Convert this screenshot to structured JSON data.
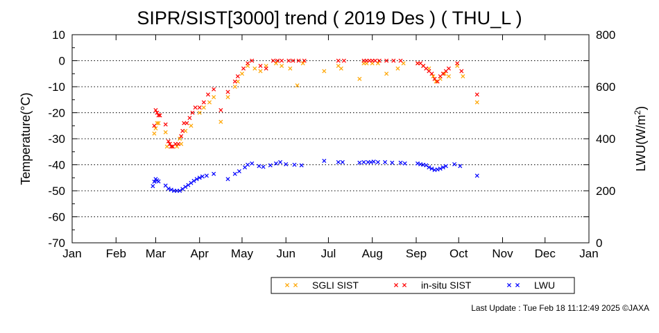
{
  "chart_data": {
    "type": "scatter",
    "title": "SIPR/SIST[3000] trend ( 2019 Des ) ( THU_L )",
    "ylabel": "Temperature(°C)",
    "y2label_main": "LWU(W/m",
    "y2label_sup": "2",
    "y2label_end": ")",
    "ylim": [
      -70,
      10
    ],
    "y2lim": [
      0,
      800
    ],
    "yticks": [
      "10",
      "0",
      "-10",
      "-20",
      "-30",
      "-40",
      "-50",
      "-60",
      "-70"
    ],
    "y2ticks": [
      "800",
      "600",
      "400",
      "200",
      "0"
    ],
    "xticks": [
      "Jan",
      "Feb",
      "Mar",
      "Apr",
      "May",
      "Jun",
      "Jul",
      "Aug",
      "Sep",
      "Oct",
      "Nov",
      "Dec",
      "Jan"
    ],
    "grid": "dotted horizontal at every 10 °C",
    "legend_position": "bottom-right",
    "colors": {
      "sgli": "#ffa500",
      "insitu": "#ff0000",
      "lwu": "#0000ff"
    },
    "series": [
      {
        "name": "SGLI SIST",
        "axis": "left",
        "x": [
          "2019-02-28",
          "2019-03-01",
          "2019-03-02",
          "2019-03-03",
          "2019-03-08",
          "2019-03-09",
          "2019-03-11",
          "2019-03-13",
          "2019-03-16",
          "2019-03-18",
          "2019-03-19",
          "2019-03-22",
          "2019-03-26",
          "2019-04-01",
          "2019-04-04",
          "2019-04-08",
          "2019-04-11",
          "2019-04-16",
          "2019-04-21",
          "2019-04-26",
          "2019-04-28",
          "2019-05-01",
          "2019-05-05",
          "2019-05-10",
          "2019-05-14",
          "2019-05-18",
          "2019-05-25",
          "2019-05-29",
          "2019-06-04",
          "2019-06-09",
          "2019-06-13",
          "2019-06-28",
          "2019-07-08",
          "2019-07-10",
          "2019-07-23",
          "2019-07-26",
          "2019-07-28",
          "2019-08-01",
          "2019-08-05",
          "2019-08-11",
          "2019-08-19",
          "2019-08-23",
          "2019-09-02",
          "2019-09-06",
          "2019-09-10",
          "2019-09-13",
          "2019-09-15",
          "2019-09-18",
          "2019-09-21",
          "2019-09-24",
          "2019-09-30",
          "2019-10-04",
          "2019-10-14"
        ],
        "y": [
          -28,
          -26,
          -24,
          -24,
          -27.5,
          -33,
          -32,
          -33,
          -33,
          -30,
          -32,
          -27,
          -25,
          -20,
          -18,
          -16,
          -14,
          -23.5,
          -14,
          -10,
          -8,
          -5,
          -2,
          -3,
          -4,
          -2,
          -1,
          -2,
          -3,
          -9.5,
          -1,
          -4,
          -2,
          -3,
          -7,
          -1,
          -1,
          -1,
          -1,
          -5,
          -3,
          -1,
          -1,
          -2,
          -3,
          -6,
          -8,
          -7,
          -5,
          -6,
          -2,
          -6,
          -16
        ]
      },
      {
        "name": "in-situ SIST",
        "axis": "left",
        "x": [
          "2019-02-28",
          "2019-03-01",
          "2019-03-02",
          "2019-03-03",
          "2019-03-04",
          "2019-03-08",
          "2019-03-10",
          "2019-03-11",
          "2019-03-12",
          "2019-03-13",
          "2019-03-15",
          "2019-03-17",
          "2019-03-19",
          "2019-03-20",
          "2019-03-21",
          "2019-03-23",
          "2019-03-25",
          "2019-03-27",
          "2019-03-29",
          "2019-04-01",
          "2019-04-04",
          "2019-04-07",
          "2019-04-11",
          "2019-04-16",
          "2019-04-21",
          "2019-04-26",
          "2019-04-28",
          "2019-05-02",
          "2019-05-05",
          "2019-05-08",
          "2019-05-14",
          "2019-05-18",
          "2019-05-23",
          "2019-05-26",
          "2019-05-29",
          "2019-06-03",
          "2019-06-06",
          "2019-06-10",
          "2019-06-14",
          "2019-07-08",
          "2019-07-12",
          "2019-07-26",
          "2019-07-28",
          "2019-07-30",
          "2019-08-01",
          "2019-08-03",
          "2019-08-06",
          "2019-08-11",
          "2019-08-16",
          "2019-08-21",
          "2019-09-02",
          "2019-09-04",
          "2019-09-06",
          "2019-09-08",
          "2019-09-10",
          "2019-09-12",
          "2019-09-14",
          "2019-09-16",
          "2019-09-18",
          "2019-09-20",
          "2019-09-22",
          "2019-09-24",
          "2019-09-30",
          "2019-10-03",
          "2019-10-14"
        ],
        "y": [
          -25,
          -19,
          -20,
          -21,
          -21,
          -24.5,
          -31,
          -32,
          -33,
          -33,
          -32,
          -32,
          -29,
          -27,
          -24,
          -24,
          -22,
          -20,
          -18,
          -18,
          -16,
          -13,
          -11,
          -19,
          -12,
          -8,
          -6,
          -3,
          -1,
          0,
          -2,
          -3,
          0,
          0,
          0,
          0,
          0,
          0,
          0,
          0,
          0,
          0,
          0,
          0,
          0,
          0,
          0,
          0,
          0,
          0,
          -1,
          -1,
          -2,
          -3,
          -4,
          -5,
          -7,
          -8,
          -6,
          -5,
          -4,
          -3,
          -1,
          -4,
          -13
        ]
      },
      {
        "name": "LWU",
        "axis": "right",
        "x": [
          "2019-02-27",
          "2019-02-28",
          "2019-03-01",
          "2019-03-02",
          "2019-03-03",
          "2019-03-08",
          "2019-03-10",
          "2019-03-12",
          "2019-03-14",
          "2019-03-16",
          "2019-03-18",
          "2019-03-20",
          "2019-03-22",
          "2019-03-24",
          "2019-03-26",
          "2019-03-28",
          "2019-03-30",
          "2019-04-01",
          "2019-04-03",
          "2019-04-06",
          "2019-04-11",
          "2019-04-21",
          "2019-04-26",
          "2019-04-29",
          "2019-05-03",
          "2019-05-05",
          "2019-05-08",
          "2019-05-13",
          "2019-05-16",
          "2019-05-21",
          "2019-05-25",
          "2019-05-28",
          "2019-06-01",
          "2019-06-07",
          "2019-06-12",
          "2019-06-28",
          "2019-07-08",
          "2019-07-11",
          "2019-07-23",
          "2019-07-26",
          "2019-07-29",
          "2019-07-31",
          "2019-08-02",
          "2019-08-05",
          "2019-08-10",
          "2019-08-15",
          "2019-08-21",
          "2019-08-24",
          "2019-09-02",
          "2019-09-04",
          "2019-09-06",
          "2019-09-08",
          "2019-09-10",
          "2019-09-12",
          "2019-09-14",
          "2019-09-16",
          "2019-09-18",
          "2019-09-20",
          "2019-09-22",
          "2019-09-28",
          "2019-10-02",
          "2019-10-14"
        ],
        "y": [
          218,
          235,
          245,
          240,
          236,
          220,
          208,
          204,
          200,
          200,
          200,
          207,
          215,
          222,
          230,
          238,
          245,
          250,
          255,
          258,
          265,
          245,
          265,
          275,
          290,
          300,
          305,
          295,
          292,
          298,
          305,
          310,
          302,
          300,
          298,
          315,
          310,
          310,
          308,
          310,
          310,
          310,
          312,
          310,
          310,
          308,
          308,
          305,
          305,
          302,
          300,
          298,
          290,
          285,
          280,
          282,
          285,
          290,
          295,
          302,
          295,
          258
        ]
      }
    ]
  },
  "legend": [
    {
      "label": "SGLI SIST"
    },
    {
      "label": "in-situ SIST"
    },
    {
      "label": "LWU"
    }
  ],
  "footer": "Last Update : Tue Feb 18 11:12:49 2025  ©JAXA"
}
